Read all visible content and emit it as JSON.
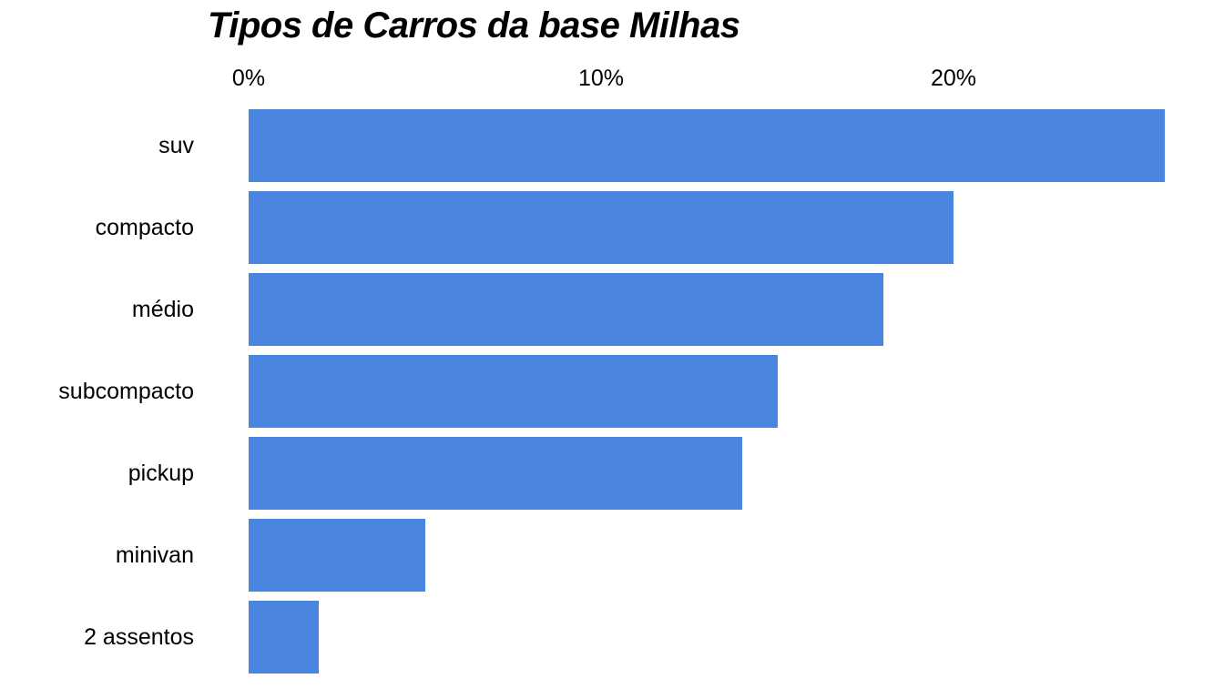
{
  "chart_data": {
    "type": "bar",
    "orientation": "horizontal",
    "title": "Tipos de Carros da base Milhas",
    "categories": [
      "suv",
      "compacto",
      "médio",
      "subcompacto",
      "pickup",
      "minivan",
      "2 assentos"
    ],
    "values": [
      26,
      20,
      18,
      15,
      14,
      5,
      2
    ],
    "value_unit": "%",
    "xlabel": "",
    "ylabel": "",
    "x_axis": {
      "position": "top",
      "range": [
        0,
        27.7
      ],
      "ticks": [
        {
          "value": 0,
          "label": "0%"
        },
        {
          "value": 10,
          "label": "10%"
        },
        {
          "value": 20,
          "label": "20%"
        }
      ]
    },
    "grid": false,
    "legend": false,
    "bar_color": "#4a86e0",
    "text_color": "#000000",
    "background_color": "#ffffff"
  }
}
